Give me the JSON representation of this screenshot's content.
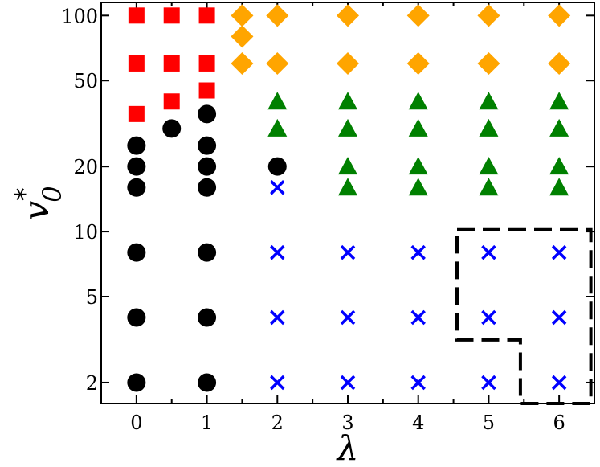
{
  "chart_data": {
    "type": "scatter",
    "xlabel": "λ",
    "ylabel_main": "v",
    "ylabel_sup": "*",
    "ylabel_sub": "0",
    "xlim": [
      -0.5,
      6.5
    ],
    "ylim": [
      1.6,
      115
    ],
    "yscale": "log",
    "grid": false,
    "x_ticks": [
      0,
      1,
      2,
      3,
      4,
      5,
      6
    ],
    "x_tick_labels": [
      "0",
      "1",
      "2",
      "3",
      "4",
      "5",
      "6"
    ],
    "y_ticks": [
      2,
      5,
      10,
      20,
      50,
      100
    ],
    "y_tick_labels": [
      "2",
      "5",
      "10",
      "20",
      "50",
      "100"
    ],
    "series": [
      {
        "marker": "square",
        "color": "#ff0000",
        "points": [
          [
            0,
            100
          ],
          [
            0.5,
            100
          ],
          [
            1,
            100
          ],
          [
            0,
            60
          ],
          [
            0.5,
            60
          ],
          [
            1,
            60
          ],
          [
            1,
            45
          ],
          [
            0.5,
            40
          ],
          [
            0,
            35
          ]
        ]
      },
      {
        "marker": "diamond",
        "color": "#ffa500",
        "points": [
          [
            1.5,
            100
          ],
          [
            2,
            100
          ],
          [
            3,
            100
          ],
          [
            4,
            100
          ],
          [
            5,
            100
          ],
          [
            6,
            100
          ],
          [
            1.5,
            80
          ],
          [
            1.5,
            60
          ],
          [
            2,
            60
          ],
          [
            3,
            60
          ],
          [
            4,
            60
          ],
          [
            5,
            60
          ],
          [
            6,
            60
          ]
        ]
      },
      {
        "marker": "circle",
        "color": "#000000",
        "points": [
          [
            0,
            25
          ],
          [
            0,
            20
          ],
          [
            0,
            16
          ],
          [
            0,
            8
          ],
          [
            0,
            4
          ],
          [
            0,
            2
          ],
          [
            0.5,
            30
          ],
          [
            1,
            35
          ],
          [
            1,
            25
          ],
          [
            1,
            20
          ],
          [
            1,
            16
          ],
          [
            1,
            8
          ],
          [
            1,
            4
          ],
          [
            1,
            2
          ],
          [
            2,
            20
          ]
        ]
      },
      {
        "marker": "triangle",
        "color": "#008000",
        "points": [
          [
            2,
            40
          ],
          [
            3,
            40
          ],
          [
            4,
            40
          ],
          [
            5,
            40
          ],
          [
            6,
            40
          ],
          [
            2,
            30
          ],
          [
            3,
            30
          ],
          [
            4,
            30
          ],
          [
            5,
            30
          ],
          [
            6,
            30
          ],
          [
            3,
            20
          ],
          [
            4,
            20
          ],
          [
            5,
            20
          ],
          [
            6,
            20
          ],
          [
            3,
            16
          ],
          [
            4,
            16
          ],
          [
            5,
            16
          ],
          [
            6,
            16
          ]
        ]
      },
      {
        "marker": "x",
        "color": "#0000ff",
        "points": [
          [
            2,
            16
          ],
          [
            2,
            8
          ],
          [
            3,
            8
          ],
          [
            4,
            8
          ],
          [
            5,
            8
          ],
          [
            6,
            8
          ],
          [
            2,
            4
          ],
          [
            3,
            4
          ],
          [
            4,
            4
          ],
          [
            5,
            4
          ],
          [
            6,
            4
          ],
          [
            2,
            2
          ],
          [
            3,
            2
          ],
          [
            4,
            2
          ],
          [
            5,
            2
          ],
          [
            6,
            2
          ]
        ]
      }
    ],
    "dashed_region": {
      "color": "#000000",
      "path": [
        [
          4.55,
          10.2
        ],
        [
          6.45,
          10.2
        ],
        [
          6.45,
          1.6
        ],
        [
          5.45,
          1.6
        ],
        [
          5.45,
          3.15
        ],
        [
          4.55,
          3.15
        ],
        [
          4.55,
          10.2
        ]
      ]
    }
  }
}
